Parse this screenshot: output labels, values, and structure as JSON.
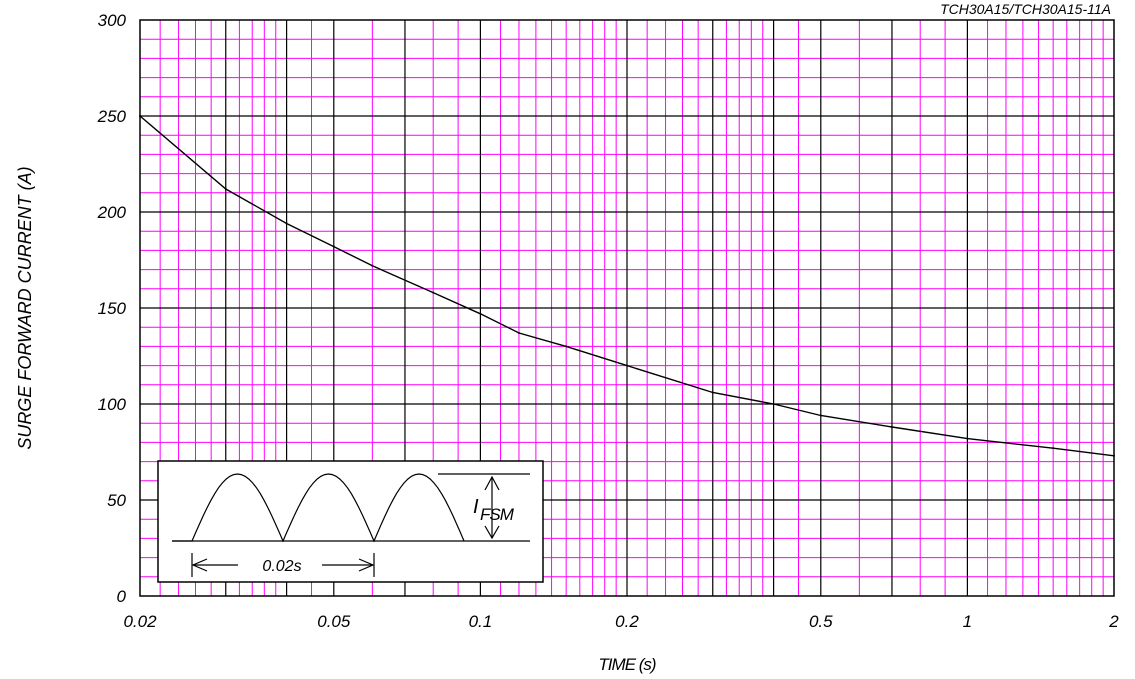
{
  "chart_data": {
    "type": "line",
    "title": "",
    "part_number": "TCH30A15/TCH30A15-11A",
    "xlabel": "TIME (s)",
    "ylabel": "SURGE FORWARD CURRENT (A)",
    "x_scale": "log",
    "xlim": [
      0.02,
      2
    ],
    "ylim": [
      0,
      300
    ],
    "x_ticks": [
      0.02,
      0.05,
      0.1,
      0.2,
      0.5,
      1,
      2
    ],
    "x_tick_labels": [
      "0.02",
      "0.05",
      "0.1",
      "0.2",
      "0.5",
      "1",
      "2"
    ],
    "y_ticks": [
      0,
      50,
      100,
      150,
      200,
      250,
      300
    ],
    "y_tick_labels": [
      "0",
      "50",
      "100",
      "150",
      "200",
      "250",
      "300"
    ],
    "grid": true,
    "series": [
      {
        "x": [
          0.02,
          0.03,
          0.04,
          0.05,
          0.06,
          0.08,
          0.1,
          0.12,
          0.15,
          0.2,
          0.3,
          0.4,
          0.5,
          0.7,
          1,
          1.5,
          2
        ],
        "y": [
          250,
          212,
          194,
          182,
          172,
          158,
          147,
          137,
          130,
          120,
          106,
          100,
          94,
          88,
          82,
          77,
          73
        ]
      }
    ],
    "inset": {
      "period_label": "0.02s",
      "amplitude_label_main": "I",
      "amplitude_label_sub": "FSM"
    },
    "colors": {
      "minor_grid": "#ff00ff",
      "major_grid": "#000000",
      "curve": "#000000",
      "background": "#ffffff"
    }
  }
}
